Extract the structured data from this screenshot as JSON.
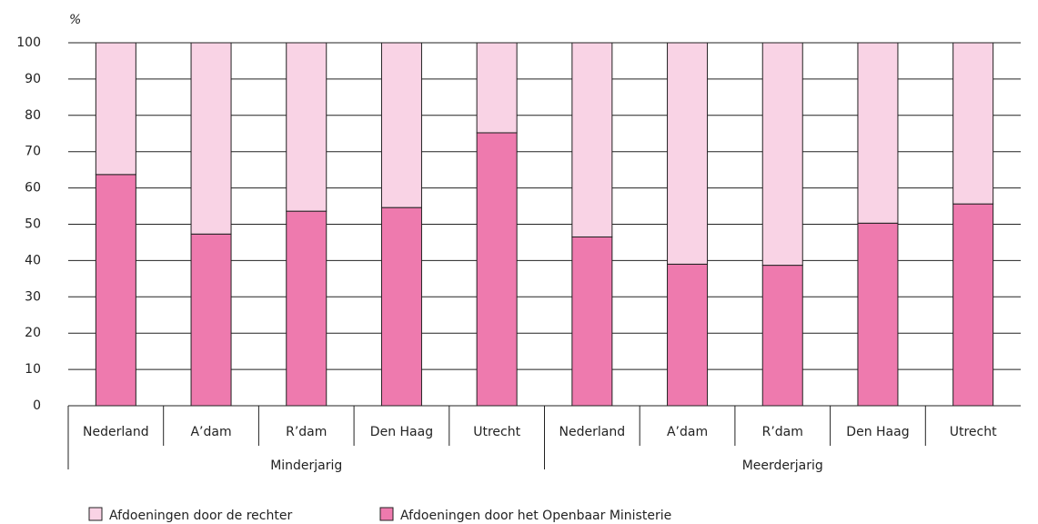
{
  "chart_data": {
    "type": "stacked_bar",
    "y_label": "%",
    "groups": [
      {
        "name": "Minderjarig",
        "categories": [
          "Nederland",
          "A’dam",
          "R’dam",
          "Den Haag",
          "Utrecht"
        ]
      },
      {
        "name": "Meerderjarig",
        "categories": [
          "Nederland",
          "A’dam",
          "R’dam",
          "Den Haag",
          "Utrecht"
        ]
      }
    ],
    "series": [
      {
        "name": "Afdoeningen door de rechter",
        "color": "#f9d3e5",
        "values": [
          36.3,
          52.7,
          46.4,
          45.4,
          24.8,
          53.5,
          61.0,
          61.3,
          49.7,
          44.4
        ]
      },
      {
        "name": "Afdoeningen door het Openbaar Ministerie",
        "color": "#ee7aae",
        "values": [
          63.7,
          47.3,
          53.6,
          54.6,
          75.2,
          46.5,
          39.0,
          38.7,
          50.3,
          55.6
        ]
      }
    ],
    "ylim": [
      0,
      100
    ],
    "yticks": [
      0,
      10,
      20,
      30,
      40,
      50,
      60,
      70,
      80,
      90,
      100
    ],
    "grid": true
  }
}
